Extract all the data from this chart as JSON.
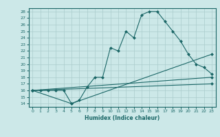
{
  "xlabel": "Humidex (Indice chaleur)",
  "xlim": [
    -0.5,
    23.5
  ],
  "ylim": [
    13.5,
    28.5
  ],
  "yticks": [
    14,
    15,
    16,
    17,
    18,
    19,
    20,
    21,
    22,
    23,
    24,
    25,
    26,
    27,
    28
  ],
  "xticks": [
    0,
    1,
    2,
    3,
    4,
    5,
    6,
    7,
    8,
    9,
    10,
    11,
    12,
    13,
    14,
    15,
    16,
    17,
    18,
    19,
    20,
    21,
    22,
    23
  ],
  "background_color": "#cce8e8",
  "grid_color": "#aacccc",
  "line_color": "#1a6666",
  "lines": [
    {
      "x": [
        0,
        1,
        2,
        3,
        4,
        5,
        6,
        7,
        8,
        9,
        10,
        11,
        12,
        13,
        14,
        15,
        16,
        17,
        18,
        19,
        20,
        21,
        22,
        23
      ],
      "y": [
        16,
        16,
        16,
        16,
        16,
        14,
        14.5,
        16.5,
        18,
        18,
        22.5,
        22,
        25,
        24,
        27.5,
        28,
        28,
        26.5,
        25,
        23.5,
        21.5,
        20,
        19.5,
        18.5
      ]
    },
    {
      "x": [
        0,
        5,
        23
      ],
      "y": [
        16,
        14,
        21.5
      ]
    },
    {
      "x": [
        0,
        23
      ],
      "y": [
        16,
        18
      ]
    },
    {
      "x": [
        0,
        23
      ],
      "y": [
        16,
        17
      ]
    }
  ]
}
